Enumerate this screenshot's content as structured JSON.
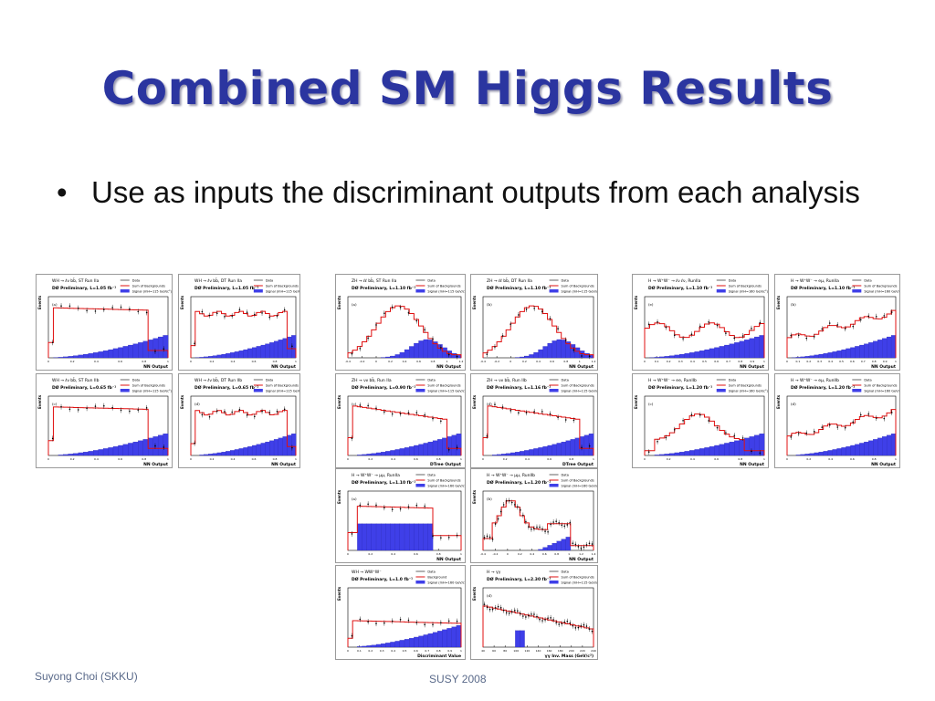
{
  "slide": {
    "title": "Combined SM Higgs Results",
    "bullet": "Use as inputs the discriminant outputs from each analysis"
  },
  "footer": {
    "author": "Suyong Choi (SKKU)",
    "event": "SUSY 2008"
  },
  "colors": {
    "title": "#2b35a0",
    "background_line": "#e01010",
    "signal_fill": "#3f3fe8",
    "data_marker": "#000000"
  },
  "plots": [
    {
      "id": "p1",
      "title": "WH → ℓν bb̄, ST Run IIa",
      "subtitle": "DØ Preliminary, L=1.05 fb⁻¹",
      "panel": "(a)",
      "xlabel": "NN Output",
      "ylabel": "Events",
      "legend": [
        "Data",
        "Sum of Backgrounds",
        "Signal (mH=115 GeV/c²)"
      ],
      "ticks": [
        "0",
        "0.2",
        "0.4",
        "0.6",
        "0.8",
        "1"
      ]
    },
    {
      "id": "p2",
      "title": "WH → ℓν bb̄, DT Run IIa",
      "subtitle": "DØ Preliminary, L=1.05 fb⁻¹",
      "panel": "",
      "xlabel": "NN Output",
      "ylabel": "Events",
      "legend": [
        "Data",
        "Sum of Backgrounds",
        "Signal (mH=115 GeV/c²)"
      ],
      "ticks": [
        "0",
        "0.2",
        "0.4",
        "0.6",
        "0.8",
        "1"
      ]
    },
    {
      "id": "p3",
      "title": "WH → ℓν bb̄, ST Run IIb",
      "subtitle": "DØ Preliminary, L=0.65 fb⁻¹",
      "panel": "(c)",
      "xlabel": "NN Output",
      "ylabel": "Events",
      "legend": [
        "Data",
        "Sum of Backgrounds",
        "Signal (mH=115 GeV/c²)"
      ],
      "ticks": [
        "0",
        "0.2",
        "0.4",
        "0.6",
        "0.8",
        "1"
      ]
    },
    {
      "id": "p4",
      "title": "WH → ℓν bb̄, DT Run IIb",
      "subtitle": "DØ Preliminary, L=0.65 fb⁻¹",
      "panel": "(d)",
      "xlabel": "NN Output",
      "ylabel": "Events",
      "legend": [
        "Data",
        "Sum of Backgrounds",
        "Signal (mH=115 GeV/c²)"
      ],
      "ticks": [
        "0",
        "0.2",
        "0.4",
        "0.6",
        "0.8",
        "1"
      ]
    },
    {
      "id": "p5",
      "title": "ZH → ℓℓ bb̄, ST Run IIa",
      "subtitle": "DØ Preliminary, L=1.10 fb⁻¹",
      "panel": "(a)",
      "xlabel": "NN Output",
      "ylabel": "Events",
      "legend": [
        "Data",
        "Sum of Backgrounds",
        "Signal (mH=115 GeV/c²)"
      ],
      "ticks": [
        "-0.4",
        "-0.2",
        "0",
        "0.2",
        "0.4",
        "0.6",
        "0.8",
        "1",
        "1.2"
      ]
    },
    {
      "id": "p6",
      "title": "ZH → ℓℓ bb̄, DT Run IIa",
      "subtitle": "DØ Preliminary, L=1.10 fb⁻¹",
      "panel": "(b)",
      "xlabel": "NN Output",
      "ylabel": "Events",
      "legend": [
        "Data",
        "Sum of Backgrounds",
        "Signal (mH=115 GeV/c²)"
      ],
      "ticks": [
        "-0.4",
        "-0.2",
        "0",
        "0.2",
        "0.4",
        "0.6",
        "0.8",
        "1",
        "1.2"
      ]
    },
    {
      "id": "p7",
      "title": "ZH → νν bb̄, Run IIa",
      "subtitle": "DØ Preliminary, L=0.90 fb⁻¹",
      "panel": "(c)",
      "xlabel": "DTree Output",
      "ylabel": "Events",
      "legend": [
        "Data",
        "Sum of Backgrounds",
        "Signal (mH=115 GeV/c²)"
      ],
      "ticks": [
        "0",
        "0.2",
        "0.4",
        "0.6",
        "0.8",
        "1"
      ]
    },
    {
      "id": "p8",
      "title": "ZH → νν bb̄, Run IIb",
      "subtitle": "DØ Preliminary, L=1.16 fb⁻¹",
      "panel": "(d)",
      "xlabel": "DTree Output",
      "ylabel": "Events",
      "legend": [
        "Data",
        "Sum of Backgrounds",
        "Signal (mH=115 GeV/c²)"
      ],
      "ticks": [
        "0",
        "0.2",
        "0.4",
        "0.6",
        "0.8",
        "1"
      ]
    },
    {
      "id": "p9",
      "title": "H → W⁺W⁻ → ℓν ℓν, RunIIa",
      "subtitle": "DØ Preliminary, L=1.10 fb⁻¹",
      "panel": "(e)",
      "xlabel": "NN Output",
      "ylabel": "Events",
      "legend": [
        "Data",
        "Sum of Backgrounds",
        "Signal (mH=160 GeV/c²)"
      ],
      "ticks": [
        "0",
        "0.1",
        "0.2",
        "0.3",
        "0.4",
        "0.5",
        "0.6",
        "0.7",
        "0.8",
        "0.9",
        "1"
      ]
    },
    {
      "id": "p10",
      "title": "H → W⁺W⁻ → eμ, RunIIa",
      "subtitle": "DØ Preliminary, L=1.10 fb⁻¹",
      "panel": "(b)",
      "xlabel": "NN Output",
      "ylabel": "Events",
      "legend": [
        "Data",
        "Sum of Backgrounds",
        "Signal (mH=160 GeV/c²)"
      ],
      "ticks": [
        "0",
        "0.1",
        "0.2",
        "0.3",
        "0.4",
        "0.5",
        "0.6",
        "0.7",
        "0.8",
        "0.9",
        "1"
      ]
    },
    {
      "id": "p11",
      "title": "H → W⁺W⁻ → ee, RunIIb",
      "subtitle": "DØ Preliminary, L=1.20 fb⁻¹",
      "panel": "(c)",
      "xlabel": "NN Output",
      "ylabel": "Events",
      "legend": [
        "Data",
        "Sum of Backgrounds",
        "Signal (mH=160 GeV/c²)"
      ],
      "ticks": [
        "0",
        "0.2",
        "0.4",
        "0.6",
        "0.8",
        "1"
      ]
    },
    {
      "id": "p12",
      "title": "H → W⁺W⁻ → eμ, RunIIb",
      "subtitle": "DØ Preliminary, L=1.20 fb⁻¹",
      "panel": "(d)",
      "xlabel": "NN Output",
      "ylabel": "Events",
      "legend": [
        "Data",
        "Sum of Backgrounds",
        "Signal (mH=160 GeV/c²)"
      ],
      "ticks": [
        "0",
        "0.2",
        "0.4",
        "0.6",
        "0.8",
        "1"
      ]
    },
    {
      "id": "p13",
      "title": "H → W⁺W⁻ → μμ, RunIIa",
      "subtitle": "DØ Preliminary, L=1.10 fb⁻¹",
      "panel": "(a)",
      "xlabel": "NN Output",
      "ylabel": "Events",
      "legend": [
        "Data",
        "Sum of Backgrounds",
        "Signal (mH=160 GeV/c²)"
      ],
      "ticks": [
        "0",
        "0.2",
        "0.4",
        "0.6",
        "0.8",
        "1"
      ]
    },
    {
      "id": "p14",
      "title": "H → W⁺W⁻ → μμ, RunIIb",
      "subtitle": "DØ Preliminary, L=1.20 fb⁻¹",
      "panel": "(b)",
      "xlabel": "NN Output",
      "ylabel": "Events",
      "legend": [
        "Data",
        "Sum of Backgrounds",
        "Signal (mH=160 GeV/c²)"
      ],
      "ticks": [
        "-0.4",
        "-0.2",
        "0",
        "0.2",
        "0.4",
        "0.6",
        "0.8",
        "1",
        "1.2",
        "1.4"
      ]
    },
    {
      "id": "p15",
      "title": "WH → WW⁺W⁻",
      "subtitle": "DØ Preliminary, L=1.0 fb⁻¹",
      "panel": "",
      "xlabel": "Discriminant Value",
      "ylabel": "Events",
      "legend": [
        "Data",
        "Background",
        "Signal (mH=160 GeV/c²)"
      ],
      "ticks": [
        "0",
        "0.1",
        "0.2",
        "0.3",
        "0.4",
        "0.5",
        "0.6",
        "0.7",
        "0.8",
        "0.9",
        "1"
      ]
    },
    {
      "id": "p16",
      "title": "H → γγ",
      "subtitle": "DØ Preliminary, L=2.30 fb⁻¹",
      "panel": "(d)",
      "xlabel": "γγ Inv. Mass (GeV/c²)",
      "ylabel": "Events",
      "legend": [
        "Data",
        "Sum of Backgrounds",
        "Signal (mH=115 GeV/c²)"
      ],
      "ticks": [
        "40",
        "60",
        "80",
        "100",
        "120",
        "140",
        "160",
        "180",
        "200",
        "220",
        "240"
      ]
    }
  ]
}
